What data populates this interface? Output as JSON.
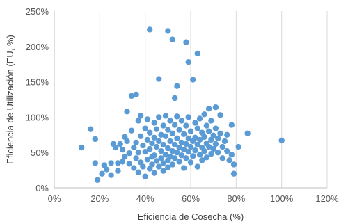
{
  "chart_data": {
    "type": "scatter",
    "title": "",
    "xlabel": "Eficiencia de Cosecha (%)",
    "ylabel": "Eficiencia de Utilización (EU, %)",
    "xlim": [
      0,
      1.2
    ],
    "ylim": [
      0,
      2.5
    ],
    "x_ticks": [
      "0%",
      "20%",
      "40%",
      "60%",
      "80%",
      "100%",
      "120%"
    ],
    "y_ticks": [
      "0%",
      "50%",
      "100%",
      "150%",
      "200%",
      "250%"
    ],
    "grid": "vertical",
    "legend": "none",
    "marker_color": "#5b9bd5",
    "points": [
      [
        0.42,
        2.24
      ],
      [
        0.5,
        2.22
      ],
      [
        0.52,
        2.1
      ],
      [
        0.58,
        2.06
      ],
      [
        0.63,
        1.9
      ],
      [
        0.59,
        1.78
      ],
      [
        0.61,
        1.53
      ],
      [
        0.46,
        1.54
      ],
      [
        0.34,
        1.3
      ],
      [
        0.36,
        1.32
      ],
      [
        0.53,
        1.27
      ],
      [
        0.54,
        1.44
      ],
      [
        0.16,
        0.83
      ],
      [
        0.12,
        0.57
      ],
      [
        0.18,
        0.69
      ],
      [
        0.18,
        0.35
      ],
      [
        0.19,
        0.11
      ],
      [
        0.21,
        0.2
      ],
      [
        0.22,
        0.32
      ],
      [
        0.23,
        0.26
      ],
      [
        0.25,
        0.35
      ],
      [
        0.25,
        0.18
      ],
      [
        0.26,
        0.62
      ],
      [
        0.27,
        0.57
      ],
      [
        0.28,
        0.24
      ],
      [
        0.28,
        0.35
      ],
      [
        0.29,
        0.62
      ],
      [
        0.3,
        0.54
      ],
      [
        0.3,
        0.37
      ],
      [
        0.31,
        0.72
      ],
      [
        0.31,
        0.44
      ],
      [
        0.32,
        1.08
      ],
      [
        0.32,
        0.66
      ],
      [
        0.33,
        0.49
      ],
      [
        0.33,
        0.34
      ],
      [
        0.34,
        0.81
      ],
      [
        0.35,
        0.57
      ],
      [
        0.35,
        0.28
      ],
      [
        0.36,
        0.64
      ],
      [
        0.36,
        0.42
      ],
      [
        0.37,
        0.95
      ],
      [
        0.37,
        0.5
      ],
      [
        0.37,
        0.22
      ],
      [
        0.38,
        1.02
      ],
      [
        0.38,
        0.73
      ],
      [
        0.38,
        0.36
      ],
      [
        0.39,
        0.6
      ],
      [
        0.39,
        0.3
      ],
      [
        0.4,
        0.84
      ],
      [
        0.4,
        0.51
      ],
      [
        0.4,
        0.16
      ],
      [
        0.41,
        0.97
      ],
      [
        0.41,
        0.68
      ],
      [
        0.41,
        0.4
      ],
      [
        0.42,
        0.78
      ],
      [
        0.42,
        0.55
      ],
      [
        0.42,
        0.27
      ],
      [
        0.43,
        0.63
      ],
      [
        0.43,
        0.44
      ],
      [
        0.43,
        0.33
      ],
      [
        0.44,
        0.92
      ],
      [
        0.44,
        0.71
      ],
      [
        0.44,
        0.46
      ],
      [
        0.44,
        0.21
      ],
      [
        0.45,
        0.83
      ],
      [
        0.45,
        0.58
      ],
      [
        0.45,
        0.38
      ],
      [
        0.46,
        1.0
      ],
      [
        0.46,
        0.66
      ],
      [
        0.46,
        0.3
      ],
      [
        0.47,
        0.75
      ],
      [
        0.47,
        0.52
      ],
      [
        0.47,
        0.42
      ],
      [
        0.48,
        0.88
      ],
      [
        0.48,
        0.61
      ],
      [
        0.48,
        0.35
      ],
      [
        0.48,
        0.24
      ],
      [
        0.49,
        1.02
      ],
      [
        0.49,
        0.73
      ],
      [
        0.49,
        0.47
      ],
      [
        0.5,
        0.82
      ],
      [
        0.5,
        0.56
      ],
      [
        0.5,
        0.39
      ],
      [
        0.5,
        0.29
      ],
      [
        0.51,
        0.95
      ],
      [
        0.51,
        0.66
      ],
      [
        0.51,
        0.44
      ],
      [
        0.52,
        0.77
      ],
      [
        0.52,
        0.52
      ],
      [
        0.52,
        0.33
      ],
      [
        0.53,
        0.89
      ],
      [
        0.53,
        0.61
      ],
      [
        0.53,
        0.42
      ],
      [
        0.54,
        1.01
      ],
      [
        0.54,
        0.7
      ],
      [
        0.54,
        0.5
      ],
      [
        0.55,
        0.82
      ],
      [
        0.55,
        0.57
      ],
      [
        0.55,
        0.37
      ],
      [
        0.56,
        0.95
      ],
      [
        0.56,
        0.64
      ],
      [
        0.56,
        0.46
      ],
      [
        0.57,
        0.76
      ],
      [
        0.57,
        0.54
      ],
      [
        0.57,
        0.28
      ],
      [
        0.58,
        0.88
      ],
      [
        0.58,
        0.62
      ],
      [
        0.58,
        0.42
      ],
      [
        0.59,
        1.0
      ],
      [
        0.59,
        0.7
      ],
      [
        0.59,
        0.51
      ],
      [
        0.6,
        0.8
      ],
      [
        0.6,
        0.58
      ],
      [
        0.6,
        0.36
      ],
      [
        0.61,
        0.66
      ],
      [
        0.61,
        0.45
      ],
      [
        0.62,
        0.92
      ],
      [
        0.62,
        0.71
      ],
      [
        0.62,
        0.53
      ],
      [
        0.63,
        0.84
      ],
      [
        0.63,
        0.61
      ],
      [
        0.63,
        0.3
      ],
      [
        0.64,
        0.98
      ],
      [
        0.64,
        0.68
      ],
      [
        0.64,
        0.47
      ],
      [
        0.65,
        0.78
      ],
      [
        0.65,
        0.57
      ],
      [
        0.65,
        0.39
      ],
      [
        0.66,
        1.04
      ],
      [
        0.66,
        0.72
      ],
      [
        0.66,
        0.52
      ],
      [
        0.67,
        0.88
      ],
      [
        0.67,
        0.63
      ],
      [
        0.67,
        0.43
      ],
      [
        0.68,
        1.12
      ],
      [
        0.68,
        0.8
      ],
      [
        0.68,
        0.58
      ],
      [
        0.69,
        0.95
      ],
      [
        0.69,
        0.68
      ],
      [
        0.69,
        0.48
      ],
      [
        0.7,
        0.74
      ],
      [
        0.7,
        0.55
      ],
      [
        0.71,
        1.14
      ],
      [
        0.71,
        0.84
      ],
      [
        0.71,
        0.62
      ],
      [
        0.72,
        0.7
      ],
      [
        0.72,
        0.5
      ],
      [
        0.73,
        1.03
      ],
      [
        0.73,
        0.77
      ],
      [
        0.74,
        0.58
      ],
      [
        0.74,
        0.42
      ],
      [
        0.75,
        0.66
      ],
      [
        0.76,
        0.75
      ],
      [
        0.76,
        0.52
      ],
      [
        0.77,
        0.39
      ],
      [
        0.78,
        0.89
      ],
      [
        0.78,
        0.47
      ],
      [
        0.79,
        0.2
      ],
      [
        0.79,
        0.33
      ],
      [
        0.81,
        0.58
      ],
      [
        0.85,
        0.77
      ],
      [
        1.0,
        0.67
      ]
    ]
  }
}
